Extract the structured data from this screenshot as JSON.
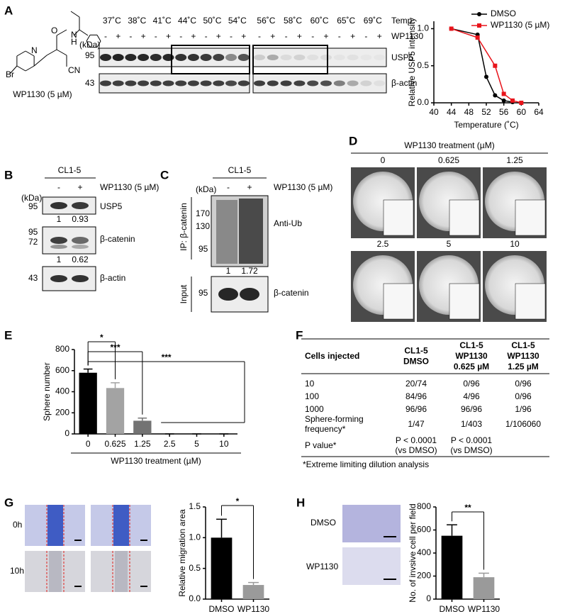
{
  "panel_labels": [
    "A",
    "B",
    "C",
    "D",
    "E",
    "F",
    "G",
    "H"
  ],
  "structure": {
    "atoms": [
      "Br",
      "N",
      "O",
      "N",
      "H",
      "CN"
    ],
    "name": "WP1130 (5 µM)"
  },
  "blot_a": {
    "temps": [
      "37˚C",
      "38˚C",
      "41˚C",
      "44˚C",
      "50˚C",
      "54˚C",
      "56˚C",
      "58˚C",
      "60˚C",
      "65˚C",
      "69˚C"
    ],
    "temp_label": "Temp.",
    "treatment_label": "WP1130",
    "signs": [
      "-",
      "+"
    ],
    "kda": "(kDa)",
    "markers": [
      "95",
      "43"
    ],
    "proteins": [
      "USP5",
      "β-actin"
    ]
  },
  "blot_b": {
    "cell_line": "CL1-5",
    "signs": [
      "-",
      "+"
    ],
    "treatment": "WP1130 (5 µM)",
    "kda": "(kDa)",
    "rows": [
      {
        "markers": [
          "95"
        ],
        "protein": "USP5",
        "quant": [
          1,
          0.93
        ]
      },
      {
        "markers": [
          "95",
          "72"
        ],
        "protein": "β-catenin",
        "quant": [
          1,
          0.62
        ]
      },
      {
        "markers": [
          "43"
        ],
        "protein": "β-actin"
      }
    ]
  },
  "blot_c": {
    "cell_line": "CL1-5",
    "signs": [
      "-",
      "+"
    ],
    "treatment": "WP1130 (5 µM)",
    "kda": "(kDa)",
    "ip_label": "IP: β-catenin",
    "input_label": "Input",
    "rows": [
      {
        "markers": [
          "170",
          "130",
          "95"
        ],
        "protein": "Anti-Ub",
        "quant": [
          1,
          1.72
        ]
      },
      {
        "markers": [
          "95"
        ],
        "protein": "β-catenin"
      }
    ]
  },
  "spheres_d": {
    "title": "WP1130 treatment (µM)",
    "doses": [
      "0",
      "0.625",
      "1.25",
      "2.5",
      "5",
      "10"
    ]
  },
  "table_f": {
    "header": [
      [
        "Cells injected"
      ],
      [
        "CL1-5",
        "DMSO"
      ],
      [
        "CL1-5",
        "WP1130",
        "0.625 µM"
      ],
      [
        "CL1-5",
        "WP1130",
        "1.25 µM"
      ]
    ],
    "rows": [
      [
        [
          "10"
        ],
        [
          "20/74"
        ],
        [
          "0/96"
        ],
        [
          "0/96"
        ]
      ],
      [
        [
          "100"
        ],
        [
          "84/96"
        ],
        [
          "4/96"
        ],
        [
          "0/96"
        ]
      ],
      [
        [
          "1000"
        ],
        [
          "96/96"
        ],
        [
          "96/96"
        ],
        [
          "1/96"
        ]
      ],
      [
        [
          "Sphere-forming",
          "frequency*"
        ],
        [
          "1/47"
        ],
        [
          "1/403"
        ],
        [
          "1/106060"
        ]
      ],
      [
        [
          "P value*"
        ],
        [
          "P < 0.0001",
          "(vs DMSO)"
        ],
        [
          "P < 0.0001",
          "(vs DMSO)"
        ]
      ]
    ],
    "footnote": "*Extreme limiting dilution analysis"
  },
  "wound_g": {
    "times": [
      "0h",
      "10h"
    ]
  },
  "invasion_h": {
    "groups": [
      "DMSO",
      "WP1130"
    ]
  },
  "chart_data": [
    {
      "type": "line",
      "ylabel": "Relative USP5 intensity",
      "xlabel": "Temperature (˚C)",
      "xlim": [
        40,
        64
      ],
      "xticks": [
        40,
        44,
        48,
        52,
        56,
        60,
        64
      ],
      "ylim": [
        0,
        1.1
      ],
      "yticks": [
        {
          "value": 0,
          "label": "0.0"
        },
        {
          "value": 0.5,
          "label": "0.5"
        },
        {
          "value": 1,
          "label": "1.0"
        }
      ],
      "legend": "upper right",
      "series": [
        {
          "name": "DMSO",
          "color": "#000000",
          "marker": "circle",
          "x": [
            44,
            50,
            52,
            54,
            56,
            58
          ],
          "values": [
            1.0,
            0.92,
            0.35,
            0.1,
            0.03,
            0.01
          ]
        },
        {
          "name": "WP1130 (5 µM)",
          "color": "#e8141b",
          "marker": "square",
          "x": [
            44,
            50,
            54,
            56,
            58,
            60
          ],
          "values": [
            1.0,
            0.88,
            0.5,
            0.12,
            0.03,
            0.0
          ]
        }
      ]
    },
    {
      "type": "bar",
      "ylabel": "Sphere number",
      "xlabel": "WP1130 treatment  (µM)",
      "categories": [
        "0",
        "0.625",
        "1.25",
        "2.5",
        "5",
        "10"
      ],
      "values": [
        580,
        435,
        125,
        0,
        0,
        0
      ],
      "errors": [
        35,
        50,
        25,
        0,
        0,
        0
      ],
      "colors": [
        "#000000",
        "#a3a3a3",
        "#737373",
        "#000000",
        "#000000",
        "#000000"
      ],
      "ylim": [
        0,
        800
      ],
      "yticks": [
        0,
        200,
        400,
        600,
        800
      ],
      "annotations": [
        "*",
        "***",
        "***"
      ]
    },
    {
      "type": "bar",
      "ylabel": "Relative migration area",
      "categories": [
        "DMSO",
        "WP1130"
      ],
      "values": [
        1.0,
        0.23
      ],
      "errors": [
        0.3,
        0.04
      ],
      "colors": [
        "#000000",
        "#9a9a9a"
      ],
      "ylim": [
        0,
        1.5
      ],
      "yticks": [
        {
          "value": 0,
          "label": "0.0"
        },
        {
          "value": 0.5,
          "label": "0.5"
        },
        {
          "value": 1,
          "label": "1.0"
        },
        {
          "value": 1.5,
          "label": "1.5"
        }
      ],
      "annotations": [
        "*"
      ]
    },
    {
      "type": "bar",
      "ylabel": "No. of invsive cell per field",
      "categories": [
        "DMSO",
        "WP1130"
      ],
      "values": [
        550,
        190
      ],
      "errors": [
        95,
        35
      ],
      "colors": [
        "#000000",
        "#9a9a9a"
      ],
      "ylim": [
        0,
        800
      ],
      "yticks": [
        0,
        200,
        400,
        600,
        800
      ],
      "annotations": [
        "**"
      ]
    }
  ]
}
